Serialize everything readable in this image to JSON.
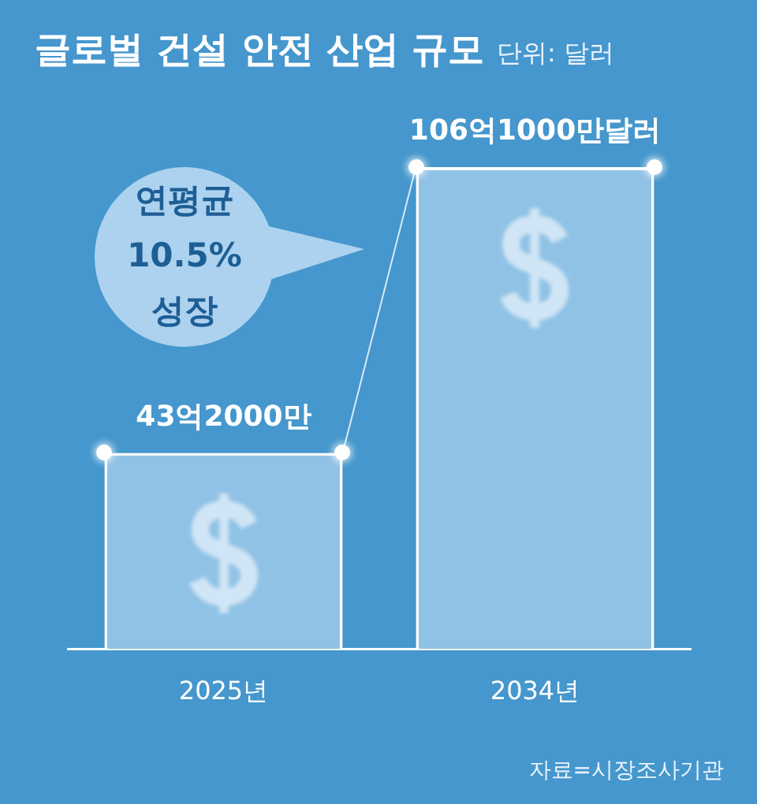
{
  "chart_data": {
    "type": "bar",
    "title": "글로벌 건설 안전 산업 규모",
    "subtitle": "단위: 달러",
    "categories": [
      "2025년",
      "2034년"
    ],
    "values": [
      43.2,
      106.1
    ],
    "color": "#90c2e5",
    "value_labels": [
      "43억2000만",
      "106억1000만달러"
    ],
    "tick_labels": "x",
    "annotations": [
      "연평균 10.5% 성장",
      "자료=시장조사기관"
    ]
  }
}
